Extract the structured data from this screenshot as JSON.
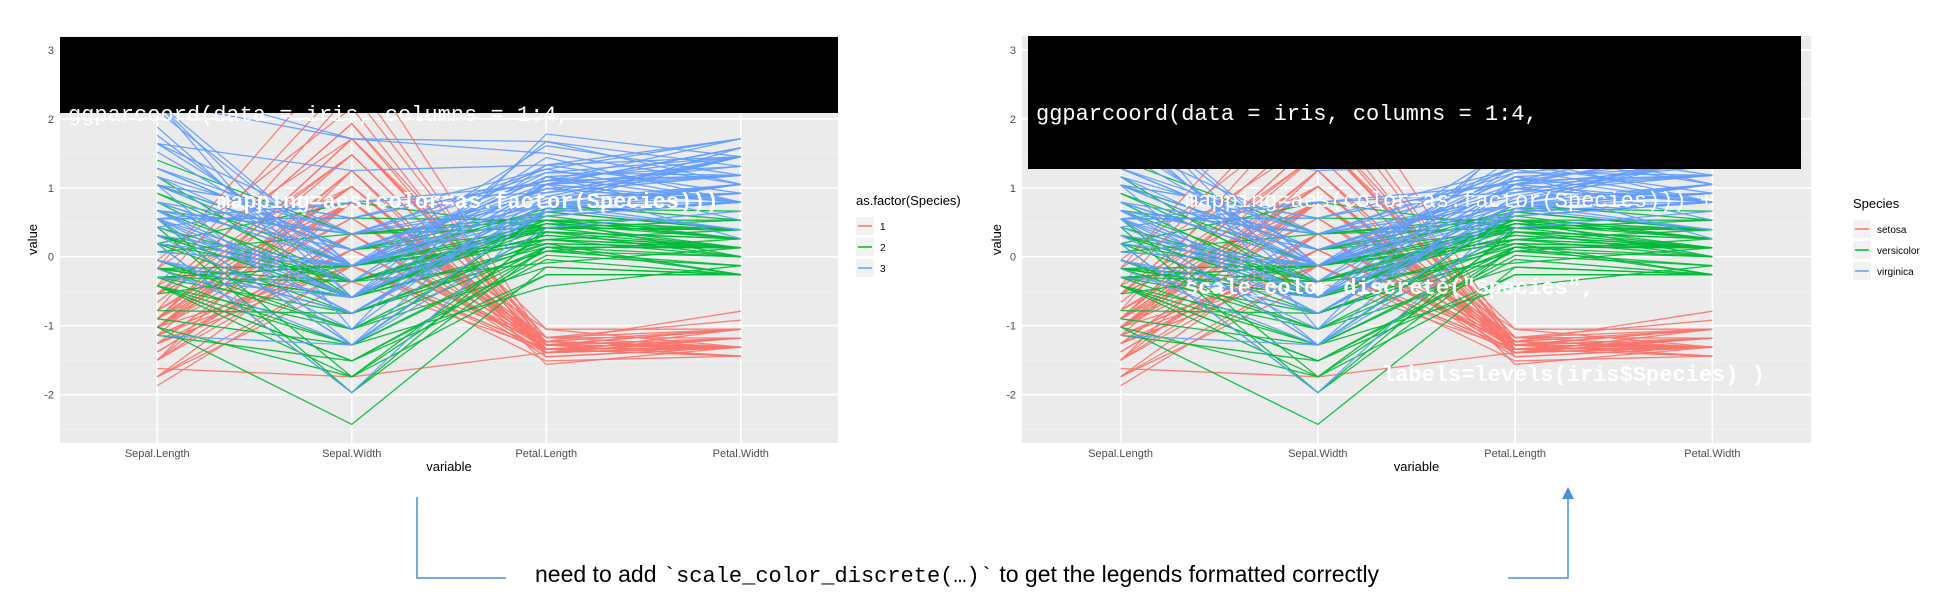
{
  "colors": {
    "setosa": "#F8766D",
    "versicolor": "#00BA38",
    "virginica": "#619CFF"
  },
  "left": {
    "code": {
      "line1": "ggparcoord(data = iris, columns = 1:4,",
      "line2": "mapping=aes(color=as.factor(Species)))"
    },
    "legend": {
      "title": "as.factor(Species)",
      "labels": [
        "1",
        "2",
        "3"
      ]
    }
  },
  "right": {
    "code": {
      "line1": "ggparcoord(data = iris, columns = 1:4,",
      "line2": "mapping=aes(color=as.factor(Species))) +",
      "line3": "scale_color_discrete(\"Species\",",
      "line4": "labels=levels(iris$Species) )"
    },
    "legend": {
      "title": "Species",
      "labels": [
        "setosa",
        "versicolor",
        "virginica"
      ]
    }
  },
  "caption": {
    "before": "need to add ",
    "code": "`scale_color_discrete(…)`",
    "after": " to get the legends formatted correctly"
  },
  "chart_data": [
    {
      "type": "line",
      "subtype": "parallel-coordinates",
      "categories": [
        "Sepal.Length",
        "Sepal.Width",
        "Petal.Length",
        "Petal.Width"
      ],
      "xlabel": "variable",
      "ylabel": "value",
      "ylim": [
        -2.7,
        3.2
      ],
      "yticks": [
        -2,
        -1,
        0,
        1,
        2,
        3
      ],
      "grid": true,
      "legend_position": "right",
      "series": [
        {
          "name": "1",
          "color": "#F8766D",
          "lines": [
            [
              -0.9,
              1.02,
              -1.34,
              -1.31
            ],
            [
              -1.14,
              -0.13,
              -1.34,
              -1.31
            ],
            [
              -1.38,
              0.33,
              -1.39,
              -1.31
            ],
            [
              -1.5,
              0.1,
              -1.28,
              -1.31
            ],
            [
              -1.02,
              1.25,
              -1.34,
              -1.31
            ],
            [
              -0.54,
              1.93,
              -1.17,
              -1.05
            ],
            [
              -1.5,
              0.79,
              -1.34,
              -1.18
            ],
            [
              -1.02,
              0.79,
              -1.28,
              -1.31
            ],
            [
              -1.74,
              -0.36,
              -1.34,
              -1.31
            ],
            [
              -1.14,
              0.1,
              -1.28,
              -1.44
            ],
            [
              -0.54,
              1.48,
              -1.28,
              -1.31
            ],
            [
              -1.26,
              0.79,
              -1.23,
              -1.31
            ],
            [
              -1.26,
              -0.13,
              -1.34,
              -1.44
            ],
            [
              -1.87,
              -0.13,
              -1.51,
              -1.44
            ],
            [
              -0.05,
              2.16,
              -1.45,
              -1.31
            ],
            [
              -0.17,
              3.07,
              -1.28,
              -1.05
            ],
            [
              -0.54,
              1.93,
              -1.39,
              -1.05
            ],
            [
              -0.9,
              1.02,
              -1.34,
              -1.18
            ],
            [
              -0.17,
              1.71,
              -1.17,
              -1.18
            ],
            [
              -0.9,
              1.71,
              -1.28,
              -1.18
            ],
            [
              -0.54,
              0.79,
              -1.17,
              -1.31
            ],
            [
              -0.9,
              1.48,
              -1.28,
              -1.05
            ],
            [
              -1.5,
              1.25,
              -1.56,
              -1.31
            ],
            [
              -0.9,
              0.56,
              -1.17,
              -0.92
            ],
            [
              -1.26,
              0.79,
              -1.05,
              -1.31
            ],
            [
              -1.02,
              -0.13,
              -1.23,
              -1.31
            ],
            [
              -1.02,
              0.79,
              -1.23,
              -1.05
            ],
            [
              -0.78,
              1.02,
              -1.28,
              -1.31
            ],
            [
              -0.78,
              0.79,
              -1.34,
              -1.31
            ],
            [
              -1.38,
              0.33,
              -1.23,
              -1.31
            ],
            [
              -1.26,
              0.1,
              -1.23,
              -1.31
            ],
            [
              -0.54,
              0.79,
              -1.28,
              -1.05
            ],
            [
              -0.78,
              2.39,
              -1.28,
              -1.44
            ],
            [
              -0.42,
              2.62,
              -1.34,
              -1.31
            ],
            [
              -1.14,
              0.1,
              -1.28,
              -1.31
            ],
            [
              -1.02,
              0.33,
              -1.45,
              -1.31
            ],
            [
              -0.42,
              1.02,
              -1.39,
              -1.31
            ],
            [
              -1.14,
              1.25,
              -1.34,
              -1.44
            ],
            [
              -1.74,
              -0.13,
              -1.39,
              -1.31
            ],
            [
              -0.9,
              0.79,
              -1.28,
              -1.31
            ],
            [
              -1.02,
              1.02,
              -1.39,
              -1.18
            ],
            [
              -1.62,
              -1.74,
              -1.39,
              -1.18
            ],
            [
              -1.74,
              0.33,
              -1.39,
              -1.31
            ],
            [
              -1.02,
              1.02,
              -1.23,
              -0.79
            ],
            [
              -0.9,
              1.71,
              -1.05,
              -1.05
            ],
            [
              -1.26,
              -0.13,
              -1.34,
              -1.18
            ],
            [
              -0.9,
              1.71,
              -1.23,
              -1.31
            ],
            [
              -1.5,
              0.33,
              -1.34,
              -1.31
            ],
            [
              -0.66,
              1.48,
              -1.28,
              -1.31
            ],
            [
              -1.02,
              0.56,
              -1.34,
              -1.31
            ]
          ]
        },
        {
          "name": "2",
          "color": "#00BA38",
          "lines": [
            [
              1.4,
              0.33,
              0.53,
              0.26
            ],
            [
              0.67,
              0.33,
              0.42,
              0.39
            ],
            [
              1.28,
              0.1,
              0.65,
              0.39
            ],
            [
              -0.42,
              -1.74,
              0.14,
              0.13
            ],
            [
              0.79,
              -0.59,
              0.48,
              0.39
            ],
            [
              -0.17,
              -0.59,
              0.42,
              0.13
            ],
            [
              0.55,
              0.56,
              0.53,
              0.53
            ],
            [
              -1.14,
              -1.51,
              -0.26,
              -0.26
            ],
            [
              0.92,
              -0.36,
              0.48,
              0.13
            ],
            [
              -0.78,
              -0.82,
              0.08,
              0.26
            ],
            [
              -1.02,
              -2.43,
              -0.15,
              -0.26
            ],
            [
              0.07,
              -0.13,
              0.25,
              0.39
            ],
            [
              0.19,
              -1.97,
              0.14,
              -0.26
            ],
            [
              0.31,
              -0.36,
              0.53,
              0.26
            ],
            [
              -0.3,
              -0.36,
              -0.09,
              0.13
            ],
            [
              1.04,
              0.1,
              0.36,
              0.26
            ],
            [
              -0.3,
              -0.13,
              0.42,
              0.39
            ],
            [
              -0.05,
              -0.82,
              0.19,
              -0.26
            ],
            [
              0.43,
              -1.97,
              0.42,
              0.39
            ],
            [
              -0.3,
              -1.28,
              0.08,
              -0.13
            ],
            [
              0.07,
              0.33,
              0.59,
              0.79
            ],
            [
              0.31,
              -0.59,
              0.14,
              0.13
            ],
            [
              0.55,
              -1.28,
              0.65,
              0.39
            ],
            [
              0.31,
              -0.59,
              0.53,
              0.0
            ],
            [
              0.67,
              -0.36,
              0.31,
              0.13
            ],
            [
              0.92,
              -0.13,
              0.36,
              0.26
            ],
            [
              1.16,
              -0.59,
              0.59,
              0.26
            ],
            [
              1.04,
              -0.13,
              0.7,
              0.66
            ],
            [
              0.19,
              -0.36,
              0.42,
              0.39
            ],
            [
              -0.17,
              -1.05,
              -0.15,
              -0.26
            ],
            [
              -0.42,
              -1.51,
              0.02,
              -0.13
            ],
            [
              -0.42,
              -1.51,
              -0.04,
              -0.26
            ],
            [
              -0.05,
              -0.82,
              0.08,
              0.0
            ],
            [
              0.19,
              -0.82,
              0.76,
              0.53
            ],
            [
              -0.54,
              -0.13,
              0.42,
              0.39
            ],
            [
              0.19,
              0.79,
              0.42,
              0.53
            ],
            [
              1.04,
              0.1,
              0.53,
              0.39
            ],
            [
              0.55,
              -1.74,
              0.36,
              0.13
            ],
            [
              -0.3,
              -0.13,
              0.19,
              0.13
            ],
            [
              -0.42,
              -1.28,
              0.14,
              0.13
            ],
            [
              -0.42,
              -1.05,
              0.36,
              0.0
            ],
            [
              0.31,
              -0.13,
              0.48,
              0.26
            ],
            [
              -0.05,
              -1.05,
              0.14,
              0.0
            ],
            [
              -1.02,
              -1.74,
              -0.26,
              -0.26
            ],
            [
              -0.3,
              -0.82,
              0.25,
              0.13
            ],
            [
              -0.17,
              -0.13,
              0.25,
              0.0
            ],
            [
              -0.17,
              -0.36,
              0.25,
              0.13
            ],
            [
              0.43,
              -0.36,
              0.31,
              0.13
            ],
            [
              -0.9,
              -1.28,
              -0.43,
              -0.13
            ],
            [
              -0.17,
              -0.59,
              0.19,
              0.13
            ]
          ]
        },
        {
          "name": "3",
          "color": "#619CFF",
          "lines": [
            [
              0.55,
              0.56,
              1.27,
              1.71
            ],
            [
              -0.05,
              -0.82,
              0.76,
              0.92
            ],
            [
              1.52,
              -0.13,
              1.22,
              1.18
            ],
            [
              0.55,
              -0.36,
              1.05,
              0.79
            ],
            [
              0.79,
              -0.13,
              1.16,
              1.31
            ],
            [
              2.12,
              -0.13,
              1.61,
              1.18
            ],
            [
              -1.14,
              -1.28,
              0.42,
              0.66
            ],
            [
              1.76,
              -0.36,
              1.44,
              0.79
            ],
            [
              1.04,
              -1.28,
              1.16,
              0.79
            ],
            [
              1.64,
              1.25,
              1.33,
              1.71
            ],
            [
              0.79,
              0.33,
              0.76,
              1.05
            ],
            [
              0.67,
              -0.82,
              0.87,
              0.92
            ],
            [
              1.16,
              -0.13,
              0.99,
              1.18
            ],
            [
              -0.17,
              -1.28,
              0.7,
              1.05
            ],
            [
              -0.05,
              -0.59,
              0.76,
              1.58
            ],
            [
              0.67,
              0.33,
              0.87,
              1.45
            ],
            [
              0.79,
              -0.13,
              0.99,
              0.79
            ],
            [
              2.24,
              1.71,
              1.67,
              1.31
            ],
            [
              2.24,
              -1.05,
              1.78,
              1.45
            ],
            [
              0.19,
              -1.97,
              0.7,
              0.39
            ],
            [
              1.28,
              0.33,
              1.1,
              1.45
            ],
            [
              -0.3,
              -0.59,
              0.65,
              1.05
            ],
            [
              2.24,
              -0.59,
              1.67,
              1.05
            ],
            [
              0.55,
              -0.82,
              0.65,
              0.79
            ],
            [
              1.04,
              0.56,
              1.1,
              1.18
            ],
            [
              1.64,
              0.33,
              1.27,
              0.79
            ],
            [
              0.43,
              -0.59,
              0.59,
              0.79
            ],
            [
              0.31,
              -0.13,
              0.65,
              0.79
            ],
            [
              0.67,
              -0.59,
              1.05,
              1.18
            ],
            [
              1.64,
              -0.13,
              1.16,
              0.53
            ],
            [
              1.88,
              -0.59,
              1.33,
              0.92
            ],
            [
              2.49,
              1.71,
              1.5,
              1.05
            ],
            [
              0.67,
              -0.59,
              1.05,
              1.31
            ],
            [
              0.55,
              -0.59,
              0.76,
              0.39
            ],
            [
              0.31,
              -1.05,
              1.05,
              0.26
            ],
            [
              2.24,
              -0.13,
              1.33,
              1.45
            ],
            [
              0.55,
              0.79,
              1.05,
              1.58
            ],
            [
              0.67,
              0.1,
              0.99,
              0.79
            ],
            [
              0.19,
              -0.13,
              0.59,
              0.79
            ],
            [
              1.28,
              0.1,
              0.93,
              1.18
            ],
            [
              1.04,
              0.1,
              1.05,
              1.58
            ],
            [
              1.28,
              0.1,
              0.76,
              1.45
            ],
            [
              -0.05,
              -0.82,
              0.76,
              0.92
            ],
            [
              1.16,
              0.33,
              1.22,
              1.45
            ],
            [
              1.04,
              0.56,
              1.1,
              1.71
            ],
            [
              1.04,
              -0.13,
              0.82,
              1.45
            ],
            [
              0.55,
              -1.28,
              0.7,
              0.92
            ],
            [
              0.79,
              -0.13,
              0.82,
              1.05
            ],
            [
              0.43,
              0.79,
              0.93,
              1.45
            ],
            [
              0.07,
              -0.13,
              0.76,
              0.79
            ]
          ]
        }
      ]
    },
    {
      "type": "line",
      "subtype": "parallel-coordinates",
      "categories": [
        "Sepal.Length",
        "Sepal.Width",
        "Petal.Length",
        "Petal.Width"
      ],
      "xlabel": "variable",
      "ylabel": "value",
      "ylim": [
        -2.7,
        3.2
      ],
      "yticks": [
        -2,
        -1,
        0,
        1,
        2,
        3
      ],
      "grid": true,
      "legend_position": "right",
      "same_data_as_left_panel": true,
      "series_names": [
        "setosa",
        "versicolor",
        "virginica"
      ]
    }
  ]
}
